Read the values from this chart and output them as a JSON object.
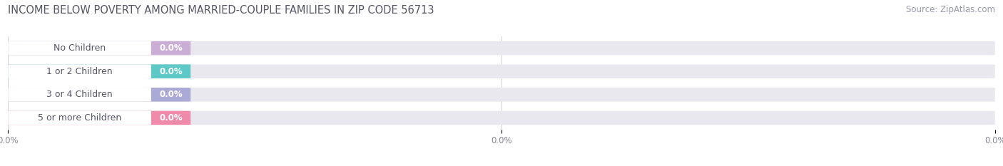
{
  "title": "INCOME BELOW POVERTY AMONG MARRIED-COUPLE FAMILIES IN ZIP CODE 56713",
  "source": "Source: ZipAtlas.com",
  "categories": [
    "No Children",
    "1 or 2 Children",
    "3 or 4 Children",
    "5 or more Children"
  ],
  "values": [
    0.0,
    0.0,
    0.0,
    0.0
  ],
  "bar_colors": [
    "#cbaed6",
    "#5dc8c5",
    "#abaad6",
    "#f08aaa"
  ],
  "bar_bg_color": "#e8e8ee",
  "title_fontsize": 10.5,
  "source_fontsize": 8.5,
  "tick_fontsize": 8.5,
  "bar_label_fontsize": 8.5,
  "cat_fontsize": 9,
  "background_color": "#ffffff",
  "bar_height": 0.6,
  "xtick_labels": [
    "0.0%",
    "0.0%",
    "0.0%"
  ],
  "grid_color": "#d0d0d8",
  "tick_color": "#888899"
}
